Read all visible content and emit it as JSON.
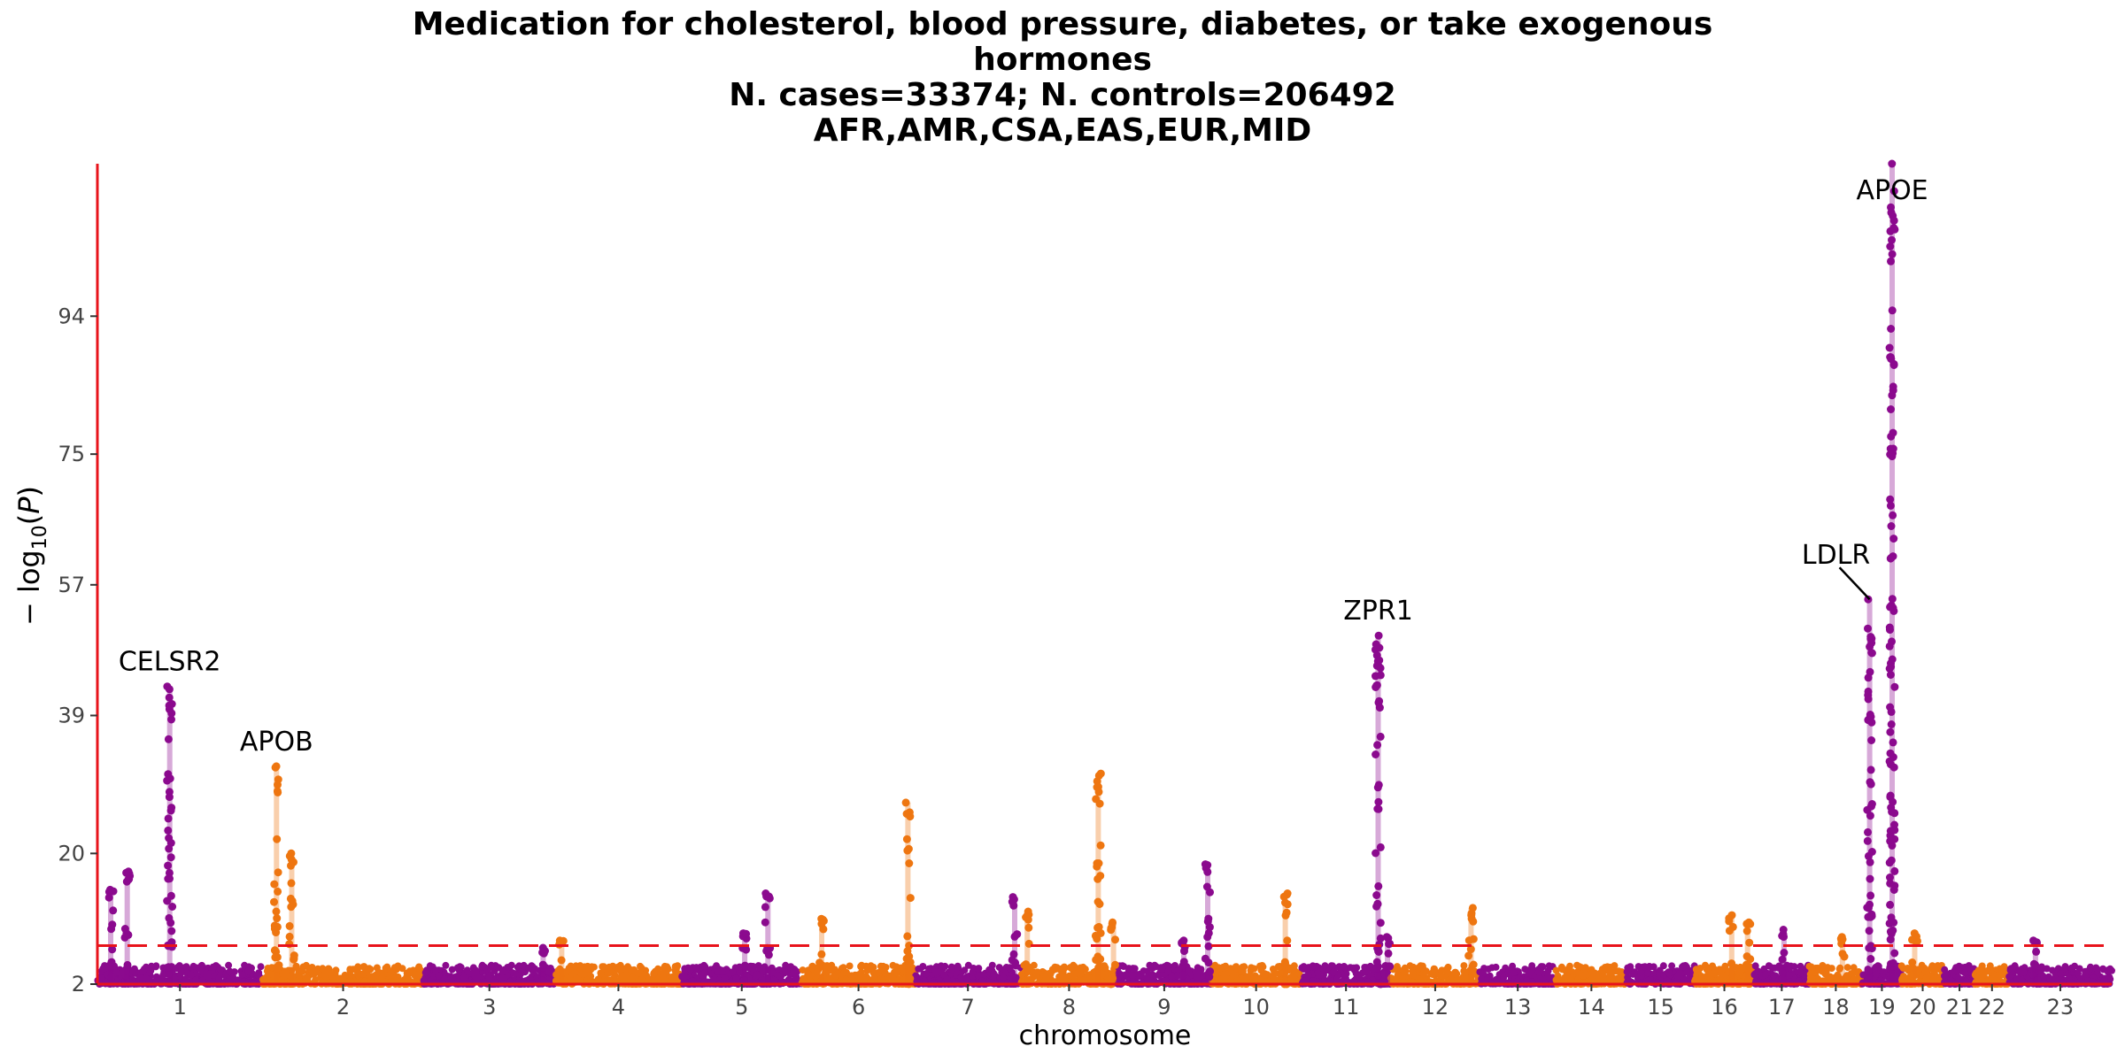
{
  "chart_data": {
    "type": "scatter",
    "title_lines": [
      "Medication for cholesterol, blood pressure, diabetes, or take exogenous",
      "hormones",
      "N. cases=33374; N. controls=206492",
      "AFR,AMR,CSA,EAS,EUR,MID"
    ],
    "xlabel": "chromosome",
    "ylabel": "− log10(P)",
    "ylim": [
      2,
      115
    ],
    "yticks": [
      2,
      20,
      39,
      57,
      75,
      94
    ],
    "significance_threshold": 7.3,
    "colors": {
      "odd": "#8B0A8E",
      "even": "#EE7610",
      "axis": "#E8131B",
      "threshold": "#E8131B",
      "label": "#000000"
    },
    "chromosomes": [
      {
        "label": "1",
        "length": 249
      },
      {
        "label": "2",
        "length": 243
      },
      {
        "label": "3",
        "length": 198
      },
      {
        "label": "4",
        "length": 191
      },
      {
        "label": "5",
        "length": 181
      },
      {
        "label": "6",
        "length": 171
      },
      {
        "label": "7",
        "length": 159
      },
      {
        "label": "8",
        "length": 146
      },
      {
        "label": "9",
        "length": 141
      },
      {
        "label": "10",
        "length": 136
      },
      {
        "label": "11",
        "length": 135
      },
      {
        "label": "12",
        "length": 134
      },
      {
        "label": "13",
        "length": 115
      },
      {
        "label": "14",
        "length": 107
      },
      {
        "label": "15",
        "length": 102
      },
      {
        "label": "16",
        "length": 90
      },
      {
        "label": "17",
        "length": 83
      },
      {
        "label": "18",
        "length": 80
      },
      {
        "label": "19",
        "length": 59
      },
      {
        "label": "20",
        "length": 64
      },
      {
        "label": "21",
        "length": 47
      },
      {
        "label": "22",
        "length": 51
      },
      {
        "label": "23",
        "length": 155
      }
    ],
    "peaks": [
      {
        "chrom": "1",
        "pos": 20,
        "max": 15
      },
      {
        "chrom": "1",
        "pos": 45,
        "max": 17.5
      },
      {
        "chrom": "1",
        "pos": 109,
        "max": 43
      },
      {
        "chrom": "2",
        "pos": 21,
        "max": 32
      },
      {
        "chrom": "2",
        "pos": 44,
        "max": 20
      },
      {
        "chrom": "3",
        "pos": 180,
        "max": 7
      },
      {
        "chrom": "4",
        "pos": 10,
        "max": 8
      },
      {
        "chrom": "5",
        "pos": 130,
        "max": 14.5
      },
      {
        "chrom": "5",
        "pos": 95,
        "max": 9
      },
      {
        "chrom": "6",
        "pos": 30,
        "max": 11
      },
      {
        "chrom": "6",
        "pos": 160,
        "max": 27
      },
      {
        "chrom": "7",
        "pos": 150,
        "max": 14
      },
      {
        "chrom": "8",
        "pos": 10,
        "max": 12
      },
      {
        "chrom": "8",
        "pos": 117,
        "max": 31
      },
      {
        "chrom": "8",
        "pos": 140,
        "max": 10.5
      },
      {
        "chrom": "9",
        "pos": 136,
        "max": 18.5
      },
      {
        "chrom": "9",
        "pos": 100,
        "max": 8
      },
      {
        "chrom": "10",
        "pos": 112,
        "max": 14.5
      },
      {
        "chrom": "11",
        "pos": 116,
        "max": 50
      },
      {
        "chrom": "11",
        "pos": 130,
        "max": 8.5
      },
      {
        "chrom": "12",
        "pos": 121,
        "max": 12.5
      },
      {
        "chrom": "16",
        "pos": 56,
        "max": 11.5
      },
      {
        "chrom": "16",
        "pos": 80,
        "max": 10.5
      },
      {
        "chrom": "17",
        "pos": 45,
        "max": 9.5
      },
      {
        "chrom": "18",
        "pos": 50,
        "max": 8.5
      },
      {
        "chrom": "19",
        "pos": 11,
        "max": 55
      },
      {
        "chrom": "19",
        "pos": 45,
        "max": 115
      },
      {
        "chrom": "20",
        "pos": 20,
        "max": 9
      },
      {
        "chrom": "23",
        "pos": 40,
        "max": 8
      }
    ],
    "annotations": [
      {
        "label": "CELSR2",
        "chrom": "1",
        "pos": 109,
        "y": 43
      },
      {
        "label": "APOB",
        "chrom": "2",
        "pos": 21,
        "y": 32
      },
      {
        "label": "ZPR1",
        "chrom": "11",
        "pos": 116,
        "y": 50
      },
      {
        "label": "LDLR",
        "chrom": "19",
        "pos": 11,
        "y": 55
      },
      {
        "label": "APOE",
        "chrom": "19",
        "pos": 45,
        "y": 115
      }
    ]
  }
}
